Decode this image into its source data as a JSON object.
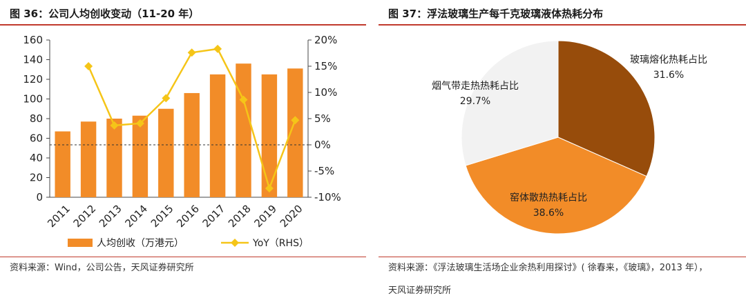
{
  "left": {
    "title": "图 36：公司人均创收变动（11-20 年）",
    "source": "资料来源：Wind，公司公告，天风证券研究所"
  },
  "right": {
    "title": "图 37：浮法玻璃生产每千克玻璃液体热耗分布",
    "source_line1": "资料来源：《浮法玻璃生活场企业余热利用探讨》( 徐春来，《玻璃》，2013 年），",
    "source_line2": "天风证券研究所"
  },
  "chart_data": [
    {
      "type": "bar",
      "categories": [
        "2011",
        "2012",
        "2013",
        "2014",
        "2015",
        "2016",
        "2017",
        "2018",
        "2019",
        "2020"
      ],
      "series": [
        {
          "name": "人均创收（万港元）",
          "type": "bar",
          "axis": "left",
          "color": "#f28c28",
          "values": [
            67,
            77,
            80,
            83,
            90,
            106,
            125,
            136,
            125,
            131
          ]
        },
        {
          "name": "YoY（RHS）",
          "type": "line",
          "axis": "right",
          "color": "#f5c518",
          "values": [
            null,
            15.0,
            3.7,
            4.1,
            8.9,
            17.6,
            18.3,
            8.6,
            -8.3,
            4.7
          ]
        }
      ],
      "ylim": [
        0,
        160
      ],
      "yticks": [
        "0",
        "20",
        "40",
        "60",
        "80",
        "100",
        "120",
        "140",
        "160"
      ],
      "y2lim": [
        -10,
        20
      ],
      "y2ticks": [
        "-10%",
        "-5%",
        "0%",
        "5%",
        "10%",
        "15%",
        "20%"
      ],
      "legend_position": "bottom",
      "grid": false
    },
    {
      "type": "pie",
      "slices": [
        {
          "label": "玻璃熔化热耗占比",
          "value_label": "31.6%",
          "value": 31.6,
          "color": "#974c0b"
        },
        {
          "label": "窑体散热热耗占比",
          "value_label": "38.6%",
          "value": 38.6,
          "color": "#f28c28"
        },
        {
          "label": "烟气带走热热耗占比",
          "value_label": "29.7%",
          "value": 29.7,
          "color": "#f2f2f2"
        }
      ]
    }
  ]
}
